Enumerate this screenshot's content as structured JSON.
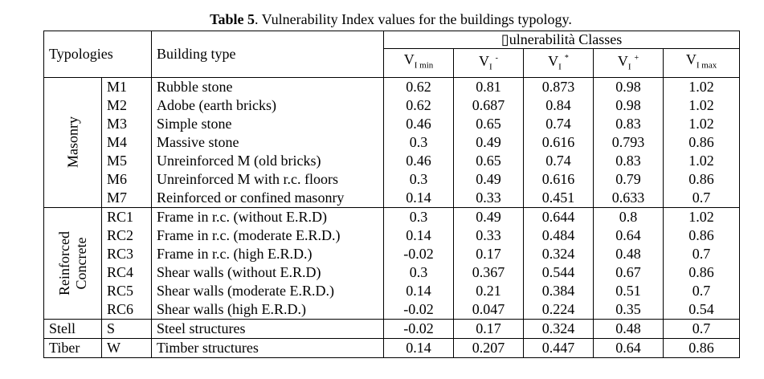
{
  "caption": {
    "label": "Table 5",
    "text": ". Vulnerability Index values for the buildings typology."
  },
  "header": {
    "typologies": "Typologies",
    "building_type": "Building type",
    "classes_glyph": "▯",
    "classes": "ulnerabilità Classes",
    "cols": [
      {
        "base": "V",
        "sub": "I min",
        "sup": ""
      },
      {
        "base": "V",
        "sub": "I",
        "sup": "-"
      },
      {
        "base": "V",
        "sub": "I",
        "sup": "*"
      },
      {
        "base": "V",
        "sub": "I",
        "sup": "+"
      },
      {
        "base": "V",
        "sub": "I max",
        "sup": ""
      }
    ]
  },
  "groups": [
    {
      "label": "Masonry",
      "rows": [
        {
          "code": "M1",
          "type": "Rubble stone",
          "v": [
            "0.62",
            "0.81",
            "0.873",
            "0.98",
            "1.02"
          ]
        },
        {
          "code": "M2",
          "type": "Adobe (earth bricks)",
          "v": [
            "0.62",
            "0.687",
            "0.84",
            "0.98",
            "1.02"
          ]
        },
        {
          "code": "M3",
          "type": "Simple stone",
          "v": [
            "0.46",
            "0.65",
            "0.74",
            "0.83",
            "1.02"
          ]
        },
        {
          "code": "M4",
          "type": "Massive stone",
          "v": [
            "0.3",
            "0.49",
            "0.616",
            "0.793",
            "0.86"
          ]
        },
        {
          "code": "M5",
          "type": "Unreinforced M (old bricks)",
          "v": [
            "0.46",
            "0.65",
            "0.74",
            "0.83",
            "1.02"
          ]
        },
        {
          "code": "M6",
          "type": "Unreinforced M  with r.c. floors",
          "v": [
            "0.3",
            "0.49",
            "0.616",
            "0.79",
            "0.86"
          ]
        },
        {
          "code": "M7",
          "type": "Reinforced or confined masonry",
          "v": [
            "0.14",
            "0.33",
            "0.451",
            "0.633",
            "0.7"
          ]
        }
      ]
    },
    {
      "label_line1": "Reinforced",
      "label_line2": "Concrete",
      "rows": [
        {
          "code": "RC1",
          "type": "Frame in r.c. (without E.R.D)",
          "v": [
            "0.3",
            "0.49",
            "0.644",
            "0.8",
            "1.02"
          ]
        },
        {
          "code": "RC2",
          "type": "Frame in r.c. (moderate E.R.D.)",
          "v": [
            "0.14",
            "0.33",
            "0.484",
            "0.64",
            "0.86"
          ]
        },
        {
          "code": "RC3",
          "type": "Frame in r.c. (high E.R.D.)",
          "v": [
            "-0.02",
            "0.17",
            "0.324",
            "0.48",
            "0.7"
          ]
        },
        {
          "code": "RC4",
          "type": "Shear walls (without E.R.D)",
          "v": [
            "0.3",
            "0.367",
            "0.544",
            "0.67",
            "0.86"
          ]
        },
        {
          "code": "RC5",
          "type": "Shear walls (moderate E.R.D.)",
          "v": [
            "0.14",
            "0.21",
            "0.384",
            "0.51",
            "0.7"
          ]
        },
        {
          "code": "RC6",
          "type": "Shear walls (high E.R.D.)",
          "v": [
            "-0.02",
            "0.047",
            "0.224",
            "0.35",
            "0.54"
          ]
        }
      ]
    },
    {
      "label": "Stell",
      "rows": [
        {
          "code": "S",
          "type": "Steel structures",
          "v": [
            "-0.02",
            "0.17",
            "0.324",
            "0.48",
            "0.7"
          ]
        }
      ]
    },
    {
      "label": "Tiber",
      "rows": [
        {
          "code": "W",
          "type": "Timber structures",
          "v": [
            "0.14",
            "0.207",
            "0.447",
            "0.64",
            "0.86"
          ]
        }
      ]
    }
  ]
}
